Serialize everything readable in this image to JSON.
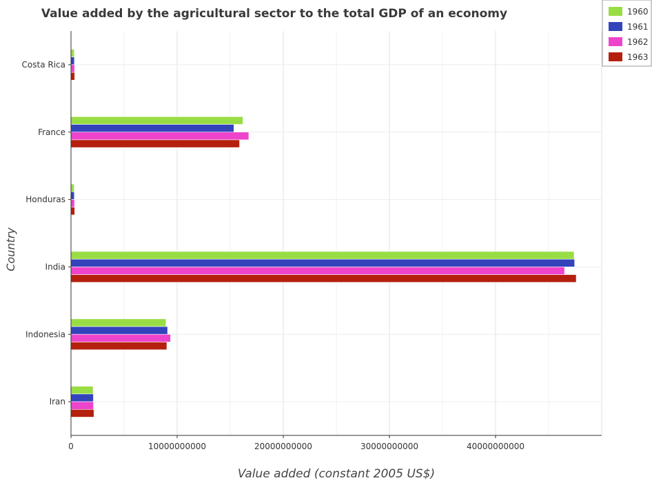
{
  "chart_data": {
    "type": "bar",
    "orientation": "horizontal",
    "title": "Value added by the agricultural sector to the total GDP of an economy",
    "xlabel": "Value added (constant 2005 US$)",
    "ylabel": "Country",
    "categories": [
      "Costa Rica",
      "France",
      "Honduras",
      "India",
      "Indonesia",
      "Iran"
    ],
    "xlim": [
      0,
      50000000000
    ],
    "xticks": [
      0,
      10000000000,
      20000000000,
      30000000000,
      40000000000
    ],
    "xtick_labels": [
      "0",
      "10000000000",
      "20000000000",
      "30000000000",
      "40000000000"
    ],
    "grid": true,
    "legend_position": "top-right",
    "series": [
      {
        "name": "1960",
        "color": "#99dd44",
        "values": [
          310000000,
          16200000000,
          300000000,
          47400000000,
          8950000000,
          2080000000
        ]
      },
      {
        "name": "1961",
        "color": "#3344bb",
        "values": [
          320000000,
          15350000000,
          310000000,
          47450000000,
          9100000000,
          2110000000
        ]
      },
      {
        "name": "1962",
        "color": "#ee44cc",
        "values": [
          340000000,
          16750000000,
          330000000,
          46500000000,
          9380000000,
          2120000000
        ]
      },
      {
        "name": "1963",
        "color": "#b5200e",
        "values": [
          350000000,
          15880000000,
          350000000,
          47600000000,
          9030000000,
          2160000000
        ]
      }
    ]
  }
}
